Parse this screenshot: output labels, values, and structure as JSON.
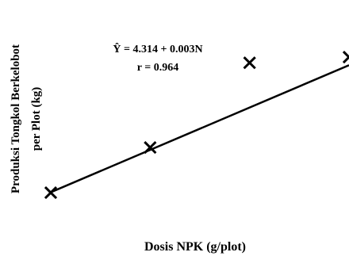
{
  "chart_data": {
    "type": "scatter",
    "xlabel": "Dosis NPK (g/plot)",
    "ylabel": [
      "Produksi Tongkol Berkelobot",
      "per Plot (kg)"
    ],
    "annotations": [
      "Ŷ = 4.314 + 0.003N",
      "r = 0.964"
    ],
    "points": [
      {
        "x": 0,
        "y": 4.3
      },
      {
        "x": 500,
        "y": 5.9
      },
      {
        "x": 1000,
        "y": 8.9
      },
      {
        "x": 1500,
        "y": 9.1
      }
    ],
    "regression": {
      "intercept": 4.314,
      "slope": 0.003
    },
    "xlim": [
      0,
      1500
    ],
    "ylim": [
      3.6,
      10.0
    ],
    "marker": "×",
    "grid": false,
    "legend": "none",
    "colors": {
      "line": "#000000",
      "marker": "#000000"
    }
  }
}
